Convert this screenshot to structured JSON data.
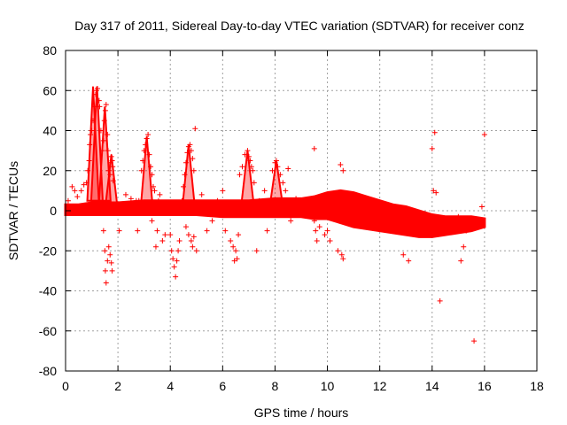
{
  "chart_data": {
    "type": "scatter",
    "title": "Day 317 of 2011, Sidereal Day-to-day VTEC variation (SDTVAR) for receiver conz",
    "xlabel": "GPS time / hours",
    "ylabel": "SDTVAR / TECUs",
    "xlim": [
      0,
      18
    ],
    "ylim": [
      -80,
      80
    ],
    "xticks": [
      0,
      2,
      4,
      6,
      8,
      10,
      12,
      14,
      16,
      18
    ],
    "yticks": [
      -80,
      -60,
      -40,
      -20,
      0,
      20,
      40,
      60,
      80
    ],
    "grid": true,
    "marker": "+",
    "colors": {
      "series": "#ff0000",
      "grid": "#a0a0a0",
      "axis": "#000000"
    },
    "series": [
      {
        "name": "SDTVAR",
        "band_x": [
          0.0,
          0.5,
          1.0,
          1.5,
          2.0,
          3.0,
          4.0,
          5.0,
          6.0,
          7.0,
          8.0,
          9.0,
          9.5,
          10.0,
          10.5,
          11.0,
          11.5,
          12.0,
          12.5,
          13.0,
          13.5,
          14.0,
          14.5,
          15.0,
          15.5,
          16.0
        ],
        "band_upper": [
          3,
          3,
          4,
          4,
          4,
          5,
          5,
          5,
          5,
          5,
          6,
          6,
          7,
          9,
          10,
          9,
          7,
          5,
          3,
          2,
          0,
          -2,
          -3,
          -3,
          -3,
          -4
        ],
        "band_lower": [
          -2,
          -2,
          -2,
          -2,
          -2,
          -2,
          -2,
          -2,
          -3,
          -3,
          -3,
          -3,
          -4,
          -4,
          -6,
          -8,
          -9,
          -10,
          -11,
          -12,
          -13,
          -13,
          -12,
          -11,
          -10,
          -8
        ],
        "spikes": [
          {
            "x": 1.05,
            "peak": 62,
            "base": 5
          },
          {
            "x": 1.2,
            "peak": 62,
            "base": 5
          },
          {
            "x": 1.5,
            "peak": 52,
            "base": 5
          },
          {
            "x": 1.75,
            "peak": 28,
            "base": 3
          },
          {
            "x": 3.1,
            "peak": 37,
            "base": 3
          },
          {
            "x": 4.7,
            "peak": 33,
            "base": 4
          },
          {
            "x": 6.95,
            "peak": 30,
            "base": 5
          },
          {
            "x": 8.05,
            "peak": 25,
            "base": 5
          }
        ],
        "outliers": [
          [
            0.1,
            5
          ],
          [
            0.25,
            12
          ],
          [
            0.35,
            10
          ],
          [
            0.45,
            7
          ],
          [
            0.6,
            10
          ],
          [
            0.7,
            13
          ],
          [
            0.8,
            14
          ],
          [
            0.85,
            20
          ],
          [
            0.9,
            25
          ],
          [
            0.92,
            33
          ],
          [
            0.95,
            38
          ],
          [
            1.0,
            40
          ],
          [
            1.05,
            45
          ],
          [
            1.1,
            52
          ],
          [
            1.15,
            58
          ],
          [
            1.18,
            60
          ],
          [
            1.22,
            61
          ],
          [
            1.28,
            55
          ],
          [
            1.3,
            52
          ],
          [
            1.35,
            40
          ],
          [
            1.4,
            30
          ],
          [
            1.45,
            35
          ],
          [
            1.48,
            45
          ],
          [
            1.52,
            50
          ],
          [
            1.55,
            53
          ],
          [
            1.6,
            38
          ],
          [
            1.62,
            30
          ],
          [
            1.65,
            20
          ],
          [
            1.7,
            18
          ],
          [
            1.72,
            24
          ],
          [
            1.75,
            27
          ],
          [
            1.78,
            25
          ],
          [
            1.8,
            22
          ],
          [
            1.82,
            15
          ],
          [
            1.45,
            -10
          ],
          [
            1.5,
            -20
          ],
          [
            1.52,
            -30
          ],
          [
            1.55,
            -36
          ],
          [
            1.6,
            -25
          ],
          [
            1.65,
            -18
          ],
          [
            1.7,
            -22
          ],
          [
            1.75,
            -26
          ],
          [
            1.78,
            -30
          ],
          [
            2.05,
            -10
          ],
          [
            2.3,
            8
          ],
          [
            2.5,
            6
          ],
          [
            2.7,
            5
          ],
          [
            2.75,
            -10
          ],
          [
            2.8,
            5
          ],
          [
            2.9,
            20
          ],
          [
            2.95,
            25
          ],
          [
            3.0,
            30
          ],
          [
            3.05,
            33
          ],
          [
            3.1,
            36
          ],
          [
            3.15,
            38
          ],
          [
            3.2,
            28
          ],
          [
            3.25,
            22
          ],
          [
            3.3,
            18
          ],
          [
            3.35,
            12
          ],
          [
            3.4,
            10
          ],
          [
            3.3,
            -5
          ],
          [
            3.45,
            -18
          ],
          [
            3.5,
            -10
          ],
          [
            3.55,
            5
          ],
          [
            3.6,
            8
          ],
          [
            3.7,
            -15
          ],
          [
            3.8,
            -12
          ],
          [
            3.9,
            0
          ],
          [
            4.0,
            -12
          ],
          [
            4.05,
            -20
          ],
          [
            4.1,
            -24
          ],
          [
            4.15,
            -28
          ],
          [
            4.2,
            -33
          ],
          [
            4.25,
            -25
          ],
          [
            4.3,
            -20
          ],
          [
            4.35,
            -15
          ],
          [
            4.45,
            5
          ],
          [
            4.5,
            12
          ],
          [
            4.55,
            18
          ],
          [
            4.6,
            24
          ],
          [
            4.65,
            29
          ],
          [
            4.7,
            32
          ],
          [
            4.75,
            33
          ],
          [
            4.8,
            30
          ],
          [
            4.85,
            26
          ],
          [
            4.9,
            20
          ],
          [
            4.95,
            41
          ],
          [
            4.6,
            -8
          ],
          [
            4.7,
            -12
          ],
          [
            4.8,
            -15
          ],
          [
            4.85,
            -18
          ],
          [
            4.9,
            -13
          ],
          [
            5.0,
            -20
          ],
          [
            5.2,
            8
          ],
          [
            5.4,
            -10
          ],
          [
            5.6,
            -5
          ],
          [
            5.8,
            5
          ],
          [
            6.0,
            10
          ],
          [
            6.1,
            -10
          ],
          [
            6.2,
            2
          ],
          [
            6.3,
            -15
          ],
          [
            6.4,
            -18
          ],
          [
            6.45,
            -25
          ],
          [
            6.5,
            -20
          ],
          [
            6.55,
            -24
          ],
          [
            6.6,
            -12
          ],
          [
            6.65,
            18
          ],
          [
            6.75,
            22
          ],
          [
            6.85,
            28
          ],
          [
            6.95,
            30
          ],
          [
            7.0,
            27
          ],
          [
            7.05,
            25
          ],
          [
            7.1,
            22
          ],
          [
            7.15,
            20
          ],
          [
            7.2,
            14
          ],
          [
            7.3,
            -20
          ],
          [
            7.4,
            5
          ],
          [
            7.6,
            10
          ],
          [
            7.7,
            -10
          ],
          [
            7.9,
            20
          ],
          [
            8.0,
            24
          ],
          [
            8.05,
            25
          ],
          [
            8.1,
            22
          ],
          [
            8.2,
            18
          ],
          [
            8.3,
            14
          ],
          [
            8.4,
            10
          ],
          [
            8.5,
            21
          ],
          [
            8.6,
            -5
          ],
          [
            8.8,
            6
          ],
          [
            9.5,
            31
          ],
          [
            9.5,
            -5
          ],
          [
            9.55,
            -10
          ],
          [
            9.6,
            -15
          ],
          [
            9.7,
            -8
          ],
          [
            9.9,
            -12
          ],
          [
            10.0,
            -10
          ],
          [
            10.1,
            -15
          ],
          [
            10.4,
            -20
          ],
          [
            10.55,
            -22
          ],
          [
            10.6,
            -24
          ],
          [
            10.5,
            23
          ],
          [
            10.6,
            20
          ],
          [
            12.9,
            -22
          ],
          [
            13.1,
            -25
          ],
          [
            13.8,
            -10
          ],
          [
            14.0,
            31
          ],
          [
            14.05,
            10
          ],
          [
            14.1,
            39
          ],
          [
            14.15,
            9
          ],
          [
            14.3,
            -45
          ],
          [
            14.4,
            -8
          ],
          [
            14.5,
            -5
          ],
          [
            15.0,
            -3
          ],
          [
            15.1,
            -25
          ],
          [
            15.2,
            -18
          ],
          [
            15.3,
            -10
          ],
          [
            15.6,
            -65
          ],
          [
            15.7,
            -5
          ],
          [
            15.9,
            2
          ],
          [
            16.0,
            38
          ]
        ]
      }
    ]
  }
}
